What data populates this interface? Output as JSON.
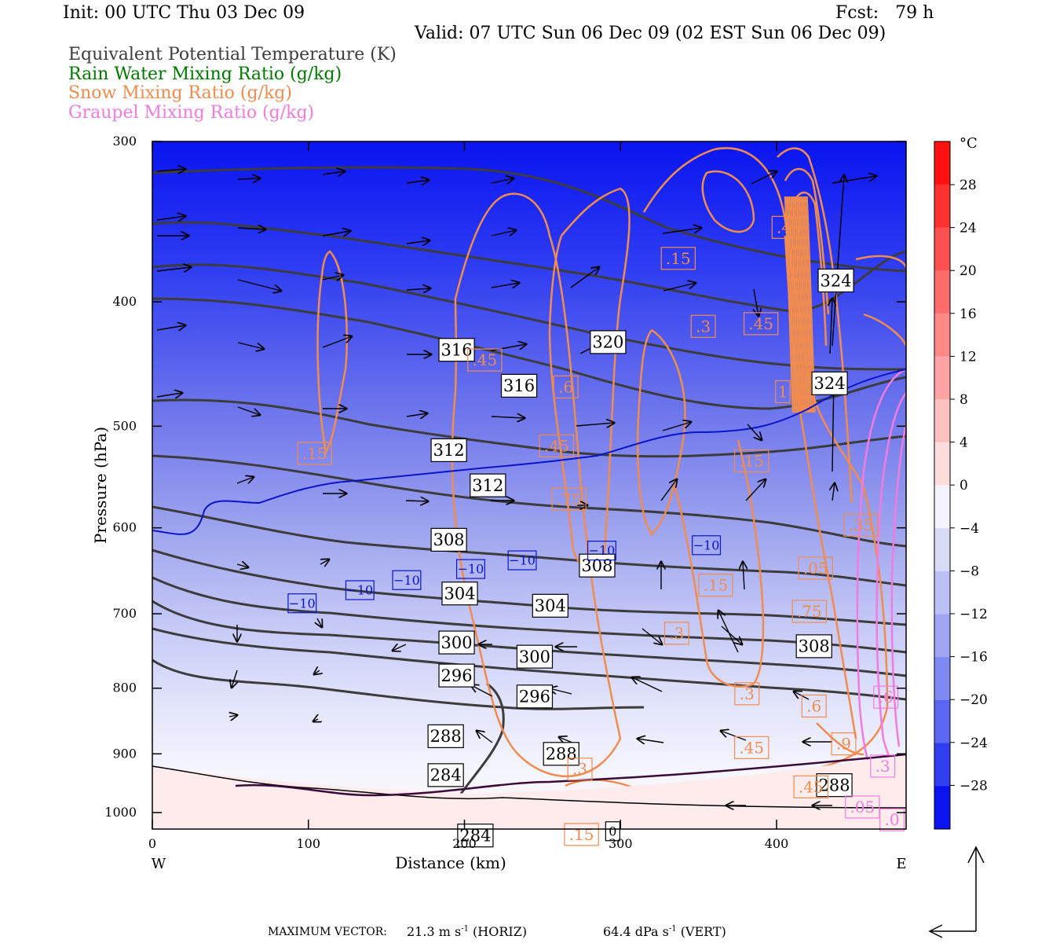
{
  "header": {
    "init": "Init: 00 UTC Thu 03 Dec 09",
    "fcst": "Fcst:   79 h",
    "valid": "Valid: 07 UTC Sun 06 Dec 09 (02 EST Sun 06 Dec 09)"
  },
  "legend": [
    {
      "text": "Equivalent Potential Temperature (K)",
      "color": "#3c3c3c"
    },
    {
      "text": "Rain Water Mixing Ratio (g/kg)",
      "color": "#007800"
    },
    {
      "text": "Snow Mixing Ratio (g/kg)",
      "color": "#f08c50"
    },
    {
      "text": "Graupel Mixing Ratio (g/kg)",
      "color": "#f07ce0"
    }
  ],
  "colorbar": {
    "unit": "°C",
    "ticks": [
      "28",
      "24",
      "20",
      "16",
      "12",
      "8",
      "4",
      "0",
      "−4",
      "−8",
      "−12",
      "−16",
      "−20",
      "−24",
      "−28"
    ]
  },
  "chart_data": {
    "type": "cross-section",
    "x_axis": {
      "label": "Distance (km)",
      "ticks": [
        "0",
        "100",
        "200",
        "300",
        "400"
      ],
      "range": [
        0,
        483
      ],
      "left_end": "W",
      "right_end": "E"
    },
    "y_axis": {
      "label": "Pressure (hPa)",
      "ticks": [
        "300",
        "400",
        "500",
        "600",
        "700",
        "800",
        "900",
        "1000"
      ],
      "range": [
        300,
        1030
      ],
      "scale": "log"
    },
    "shading": {
      "field": "temperature",
      "unit": "°C",
      "range": [
        -32,
        32
      ]
    },
    "theta_e_labels": [
      {
        "text": "316",
        "x": 195,
        "p": 436
      },
      {
        "text": "316",
        "x": 235,
        "p": 465
      },
      {
        "text": "320",
        "x": 292,
        "p": 430
      },
      {
        "text": "312",
        "x": 190,
        "p": 522
      },
      {
        "text": "312",
        "x": 215,
        "p": 556
      },
      {
        "text": "308",
        "x": 190,
        "p": 613
      },
      {
        "text": "308",
        "x": 285,
        "p": 642
      },
      {
        "text": "304",
        "x": 197,
        "p": 675
      },
      {
        "text": "304",
        "x": 255,
        "p": 690
      },
      {
        "text": "300",
        "x": 195,
        "p": 737
      },
      {
        "text": "300",
        "x": 245,
        "p": 756
      },
      {
        "text": "296",
        "x": 195,
        "p": 782
      },
      {
        "text": "296",
        "x": 245,
        "p": 812
      },
      {
        "text": "288",
        "x": 188,
        "p": 872
      },
      {
        "text": "288",
        "x": 262,
        "p": 900
      },
      {
        "text": "284",
        "x": 188,
        "p": 935
      },
      {
        "text": "284",
        "x": 207,
        "p": 1042
      },
      {
        "text": "308",
        "x": 424,
        "p": 742
      },
      {
        "text": "288",
        "x": 437,
        "p": 952
      },
      {
        "text": "324",
        "x": 434,
        "p": 463
      },
      {
        "text": "324",
        "x": 438,
        "p": 385
      }
    ],
    "snow_labels": [
      {
        "text": ".15",
        "x": 104,
        "p": 525
      },
      {
        "text": ".15",
        "x": 337,
        "p": 370
      },
      {
        "text": ".3",
        "x": 353,
        "p": 418
      },
      {
        "text": ".45",
        "x": 390,
        "p": 416
      },
      {
        "text": ".45",
        "x": 408,
        "p": 350
      },
      {
        "text": ".6",
        "x": 265,
        "p": 466
      },
      {
        "text": ".45",
        "x": 259,
        "p": 518
      },
      {
        "text": ".75",
        "x": 267,
        "p": 570
      },
      {
        "text": ".45",
        "x": 213,
        "p": 444
      },
      {
        "text": ".15",
        "x": 361,
        "p": 665
      },
      {
        "text": ".3",
        "x": 336,
        "p": 725
      },
      {
        "text": ".15",
        "x": 384,
        "p": 532
      },
      {
        "text": ".3",
        "x": 381,
        "p": 808
      },
      {
        "text": ".45",
        "x": 384,
        "p": 890
      },
      {
        "text": ".3",
        "x": 274,
        "p": 925
      },
      {
        "text": ".15",
        "x": 275,
        "p": 1040
      },
      {
        "text": ".6",
        "x": 424,
        "p": 826
      },
      {
        "text": ".9",
        "x": 443,
        "p": 884
      },
      {
        "text": ".45",
        "x": 422,
        "p": 955
      },
      {
        "text": ".75",
        "x": 421,
        "p": 697
      },
      {
        "text": ".05",
        "x": 425,
        "p": 645
      },
      {
        "text": ".35",
        "x": 454,
        "p": 597
      },
      {
        "text": "1",
        "x": 404,
        "p": 470
      }
    ],
    "graupel_labels": [
      {
        "text": ".05",
        "x": 455,
        "p": 990
      },
      {
        "text": ".3",
        "x": 468,
        "p": 920
      },
      {
        "text": ".6",
        "x": 470,
        "p": 813
      },
      {
        "text": ".0",
        "x": 474,
        "p": 1013
      }
    ],
    "isotherm_labels": [
      {
        "text": "−10",
        "x": 96,
        "p": 687
      },
      {
        "text": "−10",
        "x": 133,
        "p": 671
      },
      {
        "text": "−10",
        "x": 163,
        "p": 659
      },
      {
        "text": "−10",
        "x": 204,
        "p": 646
      },
      {
        "text": "−10",
        "x": 237,
        "p": 636
      },
      {
        "text": "−10",
        "x": 288,
        "p": 625
      },
      {
        "text": "−10",
        "x": 355,
        "p": 619
      }
    ],
    "rain_label": {
      "text": "0",
      "x": 295,
      "p": 1034
    },
    "max_vector": {
      "label": "MAXIMUM VECTOR:",
      "horiz_value": "21.3 m s",
      "horiz_unit": "(HORIZ)",
      "vert_value": "64.4 dPa s",
      "vert_unit": "(VERT)",
      "exponent": "-1"
    }
  }
}
